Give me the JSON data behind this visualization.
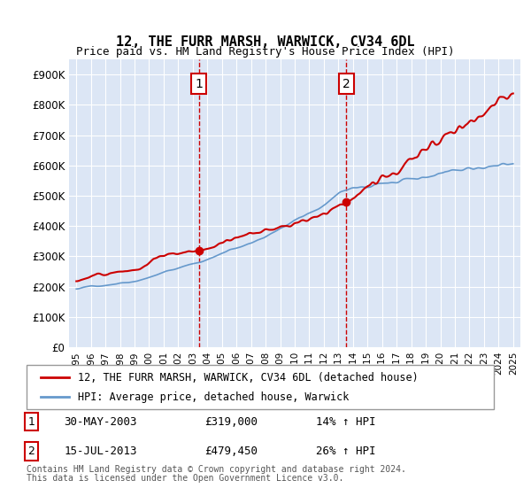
{
  "title": "12, THE FURR MARSH, WARWICK, CV34 6DL",
  "subtitle": "Price paid vs. HM Land Registry's House Price Index (HPI)",
  "ylabel_values": [
    "£0",
    "£100K",
    "£200K",
    "£300K",
    "£400K",
    "£500K",
    "£600K",
    "£700K",
    "£800K",
    "£900K"
  ],
  "ytick_values": [
    0,
    100000,
    200000,
    300000,
    400000,
    500000,
    600000,
    700000,
    800000,
    900000
  ],
  "ylim": [
    0,
    950000
  ],
  "sale1_date_num": 2003.41,
  "sale1_price": 319000,
  "sale1_label": "1",
  "sale2_date_num": 2013.54,
  "sale2_price": 479450,
  "sale2_label": "2",
  "legend_house": "12, THE FURR MARSH, WARWICK, CV34 6DL (detached house)",
  "legend_hpi": "HPI: Average price, detached house, Warwick",
  "footer1": "Contains HM Land Registry data © Crown copyright and database right 2024.",
  "footer2": "This data is licensed under the Open Government Licence v3.0.",
  "ann1_date": "30-MAY-2003",
  "ann1_price": "£319,000",
  "ann1_pct": "14% ↑ HPI",
  "ann2_date": "15-JUL-2013",
  "ann2_price": "£479,450",
  "ann2_pct": "26% ↑ HPI",
  "house_color": "#cc0000",
  "hpi_color": "#6699cc",
  "background_color": "#dce6f5"
}
